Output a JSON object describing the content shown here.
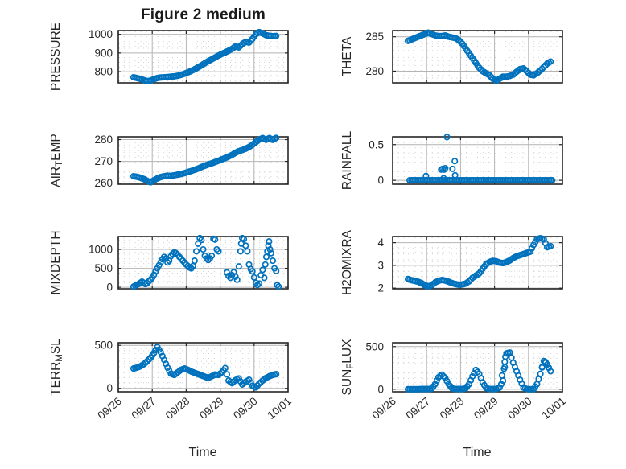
{
  "figure": {
    "title": "Figure 2 medium",
    "xlabel": "Time",
    "accent_color": "#0072BD",
    "axis_color": "#262626",
    "grid_color": "#b4b4b4",
    "minor_grid_color": "#d2d2d2",
    "x_axis": {
      "lim": [
        26,
        31
      ],
      "ticks": [
        26,
        27,
        28,
        29,
        30,
        31
      ],
      "tick_labels": [
        "09/26",
        "09/27",
        "09/28",
        "09/29",
        "09/30",
        "10/01"
      ],
      "minor_per_day": 6
    }
  },
  "chart_data": [
    {
      "type": "scatter",
      "name": "pressure",
      "ylabel": {
        "pre": "PRESSURE",
        "sub": "",
        "post": ""
      },
      "yticks": [
        800,
        900,
        1000
      ],
      "ylim": [
        740,
        1020
      ],
      "y_minor_step": 25,
      "dense": true,
      "x_start": 26.45,
      "x_step": 0.1,
      "y": [
        770,
        766,
        761,
        755,
        749,
        752,
        760,
        766,
        769,
        770,
        771,
        773,
        775,
        778,
        783,
        789,
        796,
        804,
        813,
        823,
        834,
        845,
        856,
        866,
        876,
        886,
        895,
        903,
        912,
        922,
        935,
        930,
        947,
        960,
        956,
        975,
        1000,
        1012,
        1005,
        995,
        992,
        990,
        991
      ]
    },
    {
      "type": "scatter",
      "name": "theta",
      "ylabel": {
        "pre": "THETA",
        "sub": "",
        "post": ""
      },
      "yticks": [
        280,
        285
      ],
      "ylim": [
        278.3,
        285.9
      ],
      "y_minor_step": 1,
      "dense": true,
      "x_start": 26.45,
      "x_step": 0.1,
      "y": [
        284.4,
        284.6,
        284.8,
        285.0,
        285.2,
        285.4,
        285.6,
        285.4,
        285.2,
        285.1,
        285.1,
        285.2,
        285.0,
        284.9,
        284.8,
        284.5,
        284.0,
        283.3,
        282.6,
        281.9,
        281.2,
        280.5,
        280.0,
        279.7,
        279.4,
        278.9,
        278.6,
        278.9,
        279.2,
        279.2,
        279.3,
        279.5,
        279.9,
        280.3,
        280.4,
        280.0,
        279.5,
        279.4,
        279.7,
        280.1,
        280.6,
        281.1,
        281.4
      ]
    },
    {
      "type": "scatter",
      "name": "air-temp",
      "ylabel": {
        "pre": "AIR",
        "sub": "T",
        "post": "EMP"
      },
      "yticks": [
        260,
        270,
        280
      ],
      "ylim": [
        259.5,
        281.3
      ],
      "y_minor_step": 2.5,
      "dense": true,
      "x_start": 26.45,
      "x_step": 0.1,
      "y": [
        263.2,
        262.9,
        262.5,
        261.9,
        261.0,
        260.4,
        261.3,
        262.2,
        262.8,
        263.2,
        263.4,
        263.3,
        263.6,
        263.9,
        264.2,
        264.6,
        265.1,
        265.6,
        266.1,
        266.7,
        267.4,
        268.0,
        268.6,
        269.1,
        269.7,
        270.3,
        270.9,
        271.5,
        272.2,
        273.0,
        273.9,
        274.7,
        275.2,
        275.8,
        276.6,
        277.6,
        278.8,
        280.0,
        280.7,
        279.9,
        280.7,
        279.9,
        280.8
      ]
    },
    {
      "type": "scatter",
      "name": "rainfall",
      "ylabel": {
        "pre": "RAINFALL",
        "sub": "",
        "post": ""
      },
      "yticks": [
        0,
        0.5
      ],
      "ylim": [
        -0.055,
        0.61
      ],
      "y_minor_step": 0.125,
      "dense": false,
      "zero_run": {
        "start": 26.5,
        "end": 30.7,
        "step": 0.05,
        "value": 0
      },
      "extra_points": [
        [
          26.98,
          0.06
        ],
        [
          27.43,
          0.15
        ],
        [
          27.47,
          0.16
        ],
        [
          27.5,
          0.03
        ],
        [
          27.52,
          0.15
        ],
        [
          27.55,
          0.17
        ],
        [
          27.6,
          0.605
        ],
        [
          27.76,
          0.16
        ],
        [
          27.83,
          0.27
        ],
        [
          27.84,
          0.07
        ]
      ]
    },
    {
      "type": "scatter",
      "name": "mixdepth",
      "ylabel": {
        "pre": "MIXDEPTH",
        "sub": "",
        "post": ""
      },
      "yticks": [
        0,
        500,
        1000
      ],
      "ylim": [
        -40,
        1340
      ],
      "y_minor_step": 125,
      "dense": false,
      "points": [
        [
          26.45,
          20
        ],
        [
          26.5,
          45
        ],
        [
          26.55,
          65
        ],
        [
          26.6,
          90
        ],
        [
          26.65,
          120
        ],
        [
          26.7,
          150
        ],
        [
          26.75,
          120
        ],
        [
          26.8,
          85
        ],
        [
          26.85,
          110
        ],
        [
          26.9,
          160
        ],
        [
          26.95,
          200
        ],
        [
          27.0,
          255
        ],
        [
          27.05,
          330
        ],
        [
          27.1,
          420
        ],
        [
          27.15,
          500
        ],
        [
          27.2,
          580
        ],
        [
          27.25,
          660
        ],
        [
          27.3,
          740
        ],
        [
          27.35,
          800
        ],
        [
          27.4,
          760
        ],
        [
          27.45,
          655
        ],
        [
          27.5,
          700
        ],
        [
          27.55,
          820
        ],
        [
          27.6,
          880
        ],
        [
          27.65,
          920
        ],
        [
          27.7,
          900
        ],
        [
          27.75,
          860
        ],
        [
          27.8,
          800
        ],
        [
          27.85,
          755
        ],
        [
          27.9,
          700
        ],
        [
          27.95,
          650
        ],
        [
          28.0,
          600
        ],
        [
          28.05,
          560
        ],
        [
          28.1,
          520
        ],
        [
          28.15,
          500
        ],
        [
          28.2,
          560
        ],
        [
          28.25,
          700
        ],
        [
          28.3,
          950
        ],
        [
          28.35,
          1150
        ],
        [
          28.4,
          1300
        ],
        [
          28.45,
          1250
        ],
        [
          28.5,
          1000
        ],
        [
          28.55,
          830
        ],
        [
          28.6,
          760
        ],
        [
          28.65,
          720
        ],
        [
          28.7,
          760
        ],
        [
          28.75,
          830
        ],
        [
          28.8,
          1280
        ],
        [
          28.85,
          1260
        ],
        [
          28.9,
          1000
        ],
        [
          28.95,
          950
        ],
        [
          29.2,
          390
        ],
        [
          29.25,
          300
        ],
        [
          29.3,
          250
        ],
        [
          29.35,
          320
        ],
        [
          29.4,
          400
        ],
        [
          29.45,
          280
        ],
        [
          29.5,
          200
        ],
        [
          29.55,
          550
        ],
        [
          29.6,
          950
        ],
        [
          29.62,
          1150
        ],
        [
          29.65,
          1300
        ],
        [
          29.7,
          1270
        ],
        [
          29.75,
          1100
        ],
        [
          29.8,
          950
        ],
        [
          29.85,
          600
        ],
        [
          29.9,
          480
        ],
        [
          29.95,
          420
        ],
        [
          30.0,
          260
        ],
        [
          30.05,
          120
        ],
        [
          30.1,
          60
        ],
        [
          30.15,
          100
        ],
        [
          30.2,
          320
        ],
        [
          30.25,
          460
        ],
        [
          30.3,
          250
        ],
        [
          30.33,
          600
        ],
        [
          30.36,
          800
        ],
        [
          30.39,
          950
        ],
        [
          30.42,
          1100
        ],
        [
          30.44,
          1210
        ],
        [
          30.47,
          1000
        ],
        [
          30.5,
          900
        ],
        [
          30.55,
          700
        ],
        [
          30.6,
          500
        ],
        [
          30.65,
          430
        ],
        [
          30.68,
          60
        ],
        [
          30.72,
          20
        ]
      ]
    },
    {
      "type": "scatter",
      "name": "h2omixra",
      "ylabel": {
        "pre": "H2OMIXRA",
        "sub": "",
        "post": ""
      },
      "yticks": [
        2,
        3,
        4
      ],
      "ylim": [
        1.97,
        4.27
      ],
      "y_minor_step": 0.25,
      "dense": true,
      "x_start": 26.45,
      "x_step": 0.1,
      "y": [
        2.4,
        2.35,
        2.32,
        2.28,
        2.22,
        2.12,
        2.08,
        2.12,
        2.25,
        2.32,
        2.36,
        2.33,
        2.28,
        2.22,
        2.18,
        2.15,
        2.16,
        2.2,
        2.3,
        2.45,
        2.55,
        2.65,
        2.85,
        3.05,
        3.15,
        3.2,
        3.18,
        3.12,
        3.1,
        3.15,
        3.22,
        3.32,
        3.4,
        3.45,
        3.5,
        3.55,
        3.6,
        3.9,
        4.15,
        4.2,
        4.15,
        3.8,
        3.85
      ]
    },
    {
      "type": "scatter",
      "name": "terr-msl",
      "ylabel": {
        "pre": "TERR",
        "sub": "M",
        "post": "SL"
      },
      "yticks": [
        0,
        500
      ],
      "ylim": [
        -40,
        530
      ],
      "y_minor_step": 62.5,
      "dense": true,
      "x_start": 26.45,
      "x_step": 0.1,
      "y": [
        230,
        240,
        255,
        280,
        315,
        355,
        410,
        480,
        420,
        330,
        240,
        170,
        155,
        185,
        215,
        230,
        215,
        195,
        180,
        165,
        150,
        135,
        120,
        140,
        160,
        155,
        185,
        235,
        90,
        60,
        95,
        115,
        45,
        75,
        100,
        30,
        10,
        55,
        90,
        120,
        140,
        155,
        165
      ]
    },
    {
      "type": "scatter",
      "name": "sun-flux",
      "ylabel": {
        "pre": "SUN",
        "sub": "F",
        "post": "LUX"
      },
      "yticks": [
        0,
        500
      ],
      "ylim": [
        -30,
        545
      ],
      "y_minor_step": 62.5,
      "dense": true,
      "x_start": 26.45,
      "x_step": 0.1,
      "y": [
        0,
        0,
        0,
        0,
        2,
        2,
        3,
        5,
        60,
        140,
        170,
        130,
        60,
        10,
        2,
        2,
        2,
        10,
        60,
        150,
        225,
        180,
        80,
        15,
        2,
        2,
        3,
        20,
        100,
        420,
        430,
        310,
        210,
        110,
        20,
        2,
        0,
        0,
        60,
        180,
        330,
        290,
        210
      ],
      "extra_points": [
        [
          29.22,
          160
        ],
        [
          29.28,
          240
        ],
        [
          29.3,
          320
        ],
        [
          29.32,
          380
        ],
        [
          30.3,
          120
        ],
        [
          30.4,
          260
        ],
        [
          30.5,
          320
        ],
        [
          30.6,
          250
        ]
      ]
    }
  ]
}
